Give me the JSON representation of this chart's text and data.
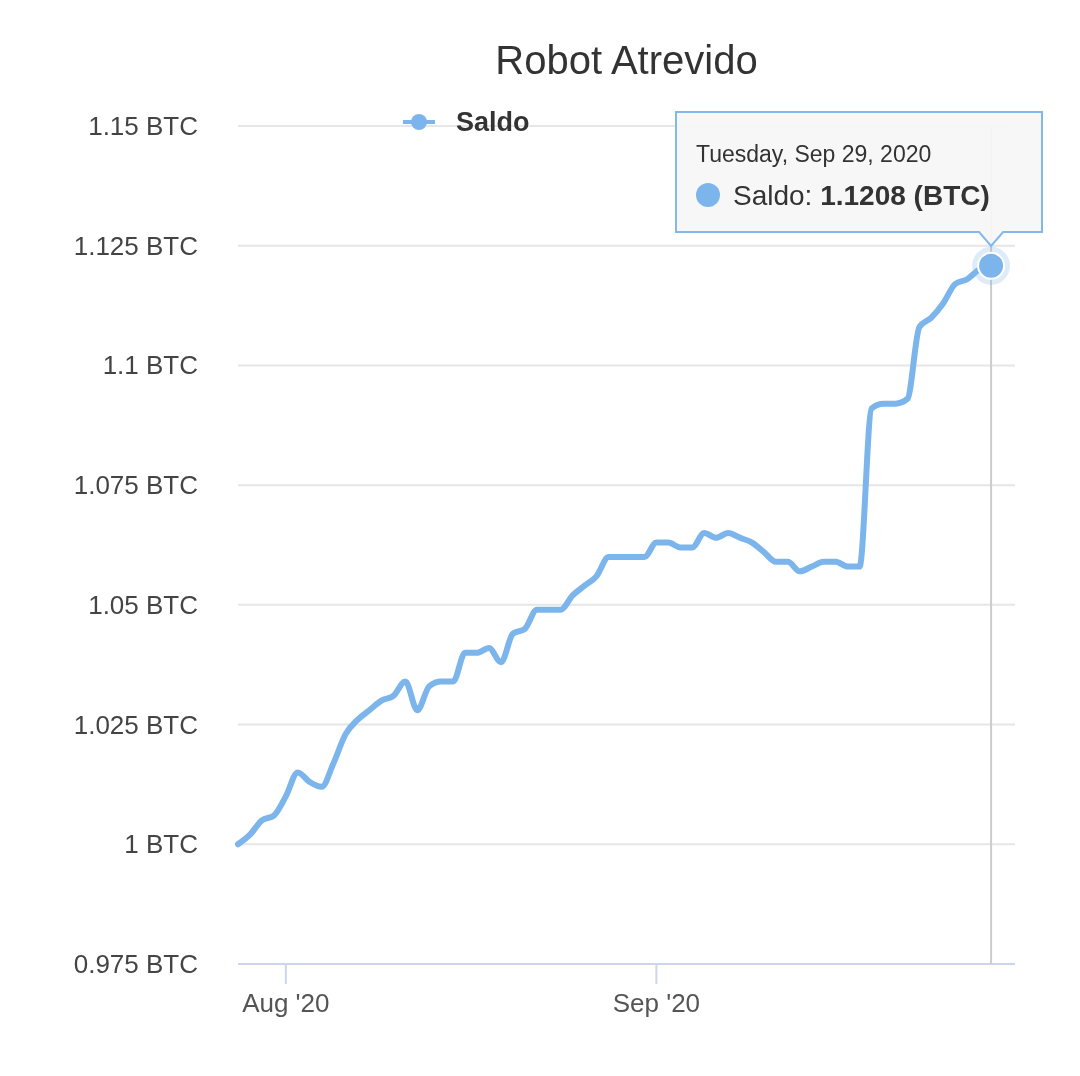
{
  "chart_data": {
    "type": "line",
    "title": "Robot Atrevido",
    "legend": "top",
    "grid": "y",
    "line_style": "solid",
    "xlim": [
      "2020-07-28",
      "2020-10-01"
    ],
    "xticks": [
      {
        "value": "2020-08-01",
        "label": "Aug '20"
      },
      {
        "value": "2020-09-01",
        "label": "Sep '20"
      }
    ],
    "ylim": [
      0.975,
      1.15
    ],
    "yticks": [
      {
        "value": 0.975,
        "label": "0.975 BTC"
      },
      {
        "value": 1,
        "label": "1 BTC"
      },
      {
        "value": 1.025,
        "label": "1.025 BTC"
      },
      {
        "value": 1.05,
        "label": "1.05 BTC"
      },
      {
        "value": 1.075,
        "label": "1.075 BTC"
      },
      {
        "value": 1.1,
        "label": "1.1 BTC"
      },
      {
        "value": 1.125,
        "label": "1.125 BTC"
      },
      {
        "value": 1.15,
        "label": "1.15 BTC"
      }
    ],
    "x": [
      "2020-07-28",
      "2020-07-29",
      "2020-07-30",
      "2020-07-31",
      "2020-08-01",
      "2020-08-02",
      "2020-08-03",
      "2020-08-04",
      "2020-08-05",
      "2020-08-06",
      "2020-08-07",
      "2020-08-08",
      "2020-08-09",
      "2020-08-10",
      "2020-08-11",
      "2020-08-12",
      "2020-08-13",
      "2020-08-14",
      "2020-08-15",
      "2020-08-16",
      "2020-08-17",
      "2020-08-18",
      "2020-08-19",
      "2020-08-20",
      "2020-08-21",
      "2020-08-22",
      "2020-08-23",
      "2020-08-24",
      "2020-08-25",
      "2020-08-26",
      "2020-08-27",
      "2020-08-28",
      "2020-08-29",
      "2020-08-30",
      "2020-08-31",
      "2020-09-01",
      "2020-09-02",
      "2020-09-03",
      "2020-09-04",
      "2020-09-05",
      "2020-09-06",
      "2020-09-07",
      "2020-09-08",
      "2020-09-09",
      "2020-09-10",
      "2020-09-11",
      "2020-09-12",
      "2020-09-13",
      "2020-09-14",
      "2020-09-15",
      "2020-09-16",
      "2020-09-17",
      "2020-09-18",
      "2020-09-19",
      "2020-09-20",
      "2020-09-21",
      "2020-09-22",
      "2020-09-23",
      "2020-09-24",
      "2020-09-25",
      "2020-09-26",
      "2020-09-27",
      "2020-09-28",
      "2020-09-29"
    ],
    "series": [
      {
        "name": "Saldo",
        "color": "#7cb5ec",
        "values": [
          1.0,
          1.002,
          1.005,
          1.006,
          1.01,
          1.015,
          1.013,
          1.012,
          1.017,
          1.023,
          1.026,
          1.028,
          1.03,
          1.031,
          1.034,
          1.028,
          1.033,
          1.034,
          1.034,
          1.04,
          1.04,
          1.041,
          1.038,
          1.044,
          1.045,
          1.049,
          1.049,
          1.049,
          1.052,
          1.054,
          1.056,
          1.06,
          1.06,
          1.06,
          1.06,
          1.063,
          1.063,
          1.062,
          1.062,
          1.065,
          1.064,
          1.065,
          1.064,
          1.063,
          1.061,
          1.059,
          1.059,
          1.057,
          1.058,
          1.059,
          1.059,
          1.058,
          1.058,
          1.091,
          1.092,
          1.092,
          1.093,
          1.108,
          1.11,
          1.113,
          1.117,
          1.118,
          1.12,
          1.1208
        ]
      }
    ],
    "ref_lines": [
      {
        "axis": "x",
        "value": "2020-09-29",
        "color": "#cccccc"
      }
    ],
    "annotations": [
      {
        "text": "Tuesday, Sep 29, 2020\nSaldo: 1.1208 (BTC)",
        "x": "2020-09-29",
        "y": 1.1208
      }
    ]
  }
}
